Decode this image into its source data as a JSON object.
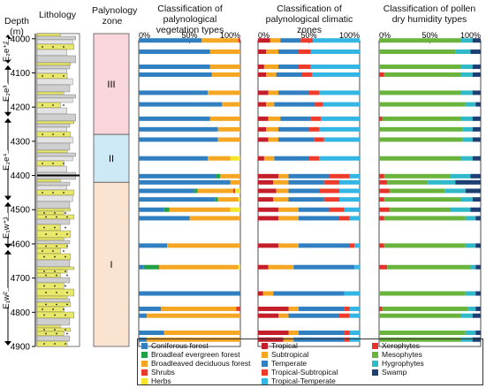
{
  "headers": {
    "depth": "Depth",
    "depth_unit": "(m)",
    "lithology": "Lithology",
    "zone": "Palynology zone",
    "panel_veg": "Classification of palynological vegetation types",
    "panel_clim": "Classification of palynological climatic zones",
    "panel_hum": "Classification of pollen dry humidity types"
  },
  "depth_ticks": [
    4000,
    4100,
    4200,
    4300,
    4400,
    4500,
    4600,
    4700,
    4800,
    4900
  ],
  "formations": [
    {
      "label": "E₂e⁺²",
      "from": 3985,
      "to": 4075
    },
    {
      "label": "E₂e³",
      "from": 4075,
      "to": 4230
    },
    {
      "label": "E₂e⁴",
      "from": 4230,
      "to": 4475
    },
    {
      "label": "E₁w⁺¹",
      "from": 4475,
      "to": 4615
    },
    {
      "label": "E₁w²",
      "from": 4615,
      "to": 4900
    }
  ],
  "zones": [
    {
      "label": "III",
      "from": 3985,
      "to": 4280,
      "color": "#f9d6dc"
    },
    {
      "label": "II",
      "from": 4280,
      "to": 4420,
      "color": "#cce9f5"
    },
    {
      "label": "I",
      "from": 4420,
      "to": 4900,
      "color": "#fbe3d2"
    }
  ],
  "axis_ticks": [
    "0%",
    "50%",
    "100%"
  ],
  "colors": {
    "Coniferous forest": "#2f7fc1",
    "Broadleaf evergreen forest": "#21a04a",
    "Broadleaved deciduous forest": "#f5a623",
    "Shrubs": "#e8392b",
    "Herbs": "#f2e52a",
    "Tropical": "#c41e2a",
    "Subtropical": "#f5a623",
    "Temperate": "#2f7fc1",
    "Tropical-Subtropical": "#ef3b2c",
    "Tropical-Temperate": "#34b6e4",
    "Xerophytes": "#e8302a",
    "Mesophytes": "#6ab43e",
    "Hygrophytes": "#30b9c9",
    "Swamp": "#1d3f73"
  },
  "legend": [
    [
      "Coniferous forest",
      "Broadleaf evergreen forest",
      "Broadleaved deciduous forest",
      "Shrubs",
      "Herbs"
    ],
    [
      "Tropical",
      "Subtropical",
      "Temperate",
      "Tropical-Subtropical",
      "Tropical-Temperate"
    ],
    [
      "Xerophytes",
      "Mesophytes",
      "Hygrophytes",
      "Swamp"
    ]
  ],
  "chart_data": [
    {
      "type": "bar",
      "title": "Classification of palynological vegetation types",
      "orientation": "horizontal-stacked",
      "xlim": [
        0,
        100
      ],
      "ylabel": "Depth (m)",
      "series_names": [
        "Coniferous forest",
        "Broadleaf evergreen forest",
        "Broadleaved deciduous forest",
        "Shrubs",
        "Herbs"
      ],
      "samples": [
        {
          "depth": 4005,
          "values": [
            62,
            0,
            36,
            2,
            0
          ]
        },
        {
          "depth": 4038,
          "values": [
            70,
            0,
            30,
            0,
            0
          ]
        },
        {
          "depth": 4082,
          "values": [
            70,
            0,
            30,
            0,
            0
          ]
        },
        {
          "depth": 4105,
          "values": [
            72,
            0,
            28,
            0,
            0
          ]
        },
        {
          "depth": 4158,
          "values": [
            68,
            0,
            32,
            0,
            0
          ]
        },
        {
          "depth": 4192,
          "values": [
            82,
            0,
            18,
            0,
            0
          ]
        },
        {
          "depth": 4234,
          "values": [
            70,
            0,
            30,
            0,
            0
          ]
        },
        {
          "depth": 4265,
          "values": [
            78,
            0,
            22,
            0,
            0
          ]
        },
        {
          "depth": 4295,
          "values": [
            78,
            0,
            22,
            0,
            0
          ]
        },
        {
          "depth": 4350,
          "values": [
            68,
            0,
            22,
            0,
            10
          ]
        },
        {
          "depth": 4402,
          "values": [
            76,
            4,
            20,
            0,
            0
          ]
        },
        {
          "depth": 4420,
          "values": [
            90,
            0,
            10,
            0,
            0
          ]
        },
        {
          "depth": 4445,
          "values": [
            55,
            3,
            35,
            2,
            5
          ]
        },
        {
          "depth": 4470,
          "values": [
            75,
            3,
            20,
            0,
            2
          ]
        },
        {
          "depth": 4500,
          "values": [
            25,
            5,
            60,
            0,
            10
          ]
        },
        {
          "depth": 4525,
          "values": [
            50,
            0,
            50,
            0,
            0
          ]
        },
        {
          "depth": 4605,
          "values": [
            28,
            0,
            72,
            0,
            0
          ]
        },
        {
          "depth": 4668,
          "values": [
            5,
            15,
            78,
            0,
            2
          ]
        },
        {
          "depth": 4745,
          "values": [
            100,
            0,
            0,
            0,
            0
          ]
        },
        {
          "depth": 4790,
          "values": [
            22,
            0,
            74,
            4,
            0
          ]
        },
        {
          "depth": 4810,
          "values": [
            8,
            0,
            92,
            0,
            0
          ]
        },
        {
          "depth": 4860,
          "values": [
            25,
            0,
            75,
            0,
            0
          ]
        },
        {
          "depth": 4880,
          "values": [
            8,
            0,
            92,
            0,
            0
          ]
        }
      ]
    },
    {
      "type": "bar",
      "title": "Classification of palynological climatic zones",
      "orientation": "horizontal-stacked",
      "xlim": [
        0,
        100
      ],
      "ylabel": "Depth (m)",
      "series_names": [
        "Tropical",
        "Subtropical",
        "Temperate",
        "Tropical-Subtropical",
        "Tropical-Temperate"
      ],
      "samples": [
        {
          "depth": 4005,
          "values": [
            12,
            10,
            20,
            12,
            46
          ]
        },
        {
          "depth": 4038,
          "values": [
            8,
            12,
            20,
            12,
            48
          ]
        },
        {
          "depth": 4082,
          "values": [
            6,
            14,
            20,
            12,
            48
          ]
        },
        {
          "depth": 4105,
          "values": [
            8,
            10,
            25,
            10,
            47
          ]
        },
        {
          "depth": 4158,
          "values": [
            10,
            10,
            30,
            10,
            40
          ]
        },
        {
          "depth": 4192,
          "values": [
            8,
            8,
            40,
            8,
            36
          ]
        },
        {
          "depth": 4234,
          "values": [
            10,
            12,
            30,
            10,
            38
          ]
        },
        {
          "depth": 4265,
          "values": [
            8,
            12,
            30,
            10,
            40
          ]
        },
        {
          "depth": 4295,
          "values": [
            10,
            10,
            35,
            10,
            35
          ]
        },
        {
          "depth": 4350,
          "values": [
            6,
            10,
            34,
            10,
            40
          ]
        },
        {
          "depth": 4402,
          "values": [
            20,
            10,
            40,
            20,
            10
          ]
        },
        {
          "depth": 4420,
          "values": [
            15,
            15,
            35,
            15,
            20
          ]
        },
        {
          "depth": 4445,
          "values": [
            18,
            12,
            30,
            20,
            20
          ]
        },
        {
          "depth": 4470,
          "values": [
            15,
            15,
            35,
            15,
            20
          ]
        },
        {
          "depth": 4500,
          "values": [
            20,
            20,
            30,
            15,
            15
          ]
        },
        {
          "depth": 4525,
          "values": [
            20,
            20,
            40,
            10,
            10
          ]
        },
        {
          "depth": 4605,
          "values": [
            20,
            20,
            50,
            5,
            5
          ]
        },
        {
          "depth": 4668,
          "values": [
            10,
            25,
            60,
            0,
            5
          ]
        },
        {
          "depth": 4745,
          "values": [
            5,
            10,
            70,
            0,
            15
          ]
        },
        {
          "depth": 4790,
          "values": [
            30,
            10,
            45,
            5,
            10
          ]
        },
        {
          "depth": 4810,
          "values": [
            20,
            10,
            50,
            10,
            10
          ]
        },
        {
          "depth": 4860,
          "values": [
            30,
            10,
            45,
            5,
            10
          ]
        },
        {
          "depth": 4880,
          "values": [
            25,
            10,
            50,
            5,
            10
          ]
        }
      ]
    },
    {
      "type": "bar",
      "title": "Classification of pollen dry humidity types",
      "orientation": "horizontal-stacked",
      "xlim": [
        0,
        100
      ],
      "ylabel": "Depth (m)",
      "series_names": [
        "Xerophytes",
        "Mesophytes",
        "Hygrophytes",
        "Swamp"
      ],
      "samples": [
        {
          "depth": 4005,
          "values": [
            0,
            80,
            12,
            8
          ]
        },
        {
          "depth": 4038,
          "values": [
            0,
            75,
            15,
            10
          ]
        },
        {
          "depth": 4082,
          "values": [
            0,
            80,
            12,
            8
          ]
        },
        {
          "depth": 4105,
          "values": [
            5,
            75,
            12,
            8
          ]
        },
        {
          "depth": 4158,
          "values": [
            0,
            80,
            12,
            8
          ]
        },
        {
          "depth": 4192,
          "values": [
            0,
            85,
            10,
            5
          ]
        },
        {
          "depth": 4234,
          "values": [
            3,
            77,
            12,
            8
          ]
        },
        {
          "depth": 4265,
          "values": [
            0,
            82,
            10,
            8
          ]
        },
        {
          "depth": 4295,
          "values": [
            0,
            82,
            10,
            8
          ]
        },
        {
          "depth": 4350,
          "values": [
            0,
            80,
            12,
            8
          ]
        },
        {
          "depth": 4402,
          "values": [
            5,
            65,
            20,
            10
          ]
        },
        {
          "depth": 4420,
          "values": [
            8,
            40,
            27,
            25
          ]
        },
        {
          "depth": 4445,
          "values": [
            10,
            55,
            20,
            15
          ]
        },
        {
          "depth": 4470,
          "values": [
            5,
            75,
            12,
            8
          ]
        },
        {
          "depth": 4500,
          "values": [
            10,
            60,
            20,
            10
          ]
        },
        {
          "depth": 4525,
          "values": [
            5,
            80,
            10,
            5
          ]
        },
        {
          "depth": 4605,
          "values": [
            5,
            80,
            10,
            5
          ]
        },
        {
          "depth": 4668,
          "values": [
            8,
            82,
            5,
            5
          ]
        },
        {
          "depth": 4745,
          "values": [
            0,
            85,
            10,
            5
          ]
        },
        {
          "depth": 4790,
          "values": [
            3,
            85,
            7,
            5
          ]
        },
        {
          "depth": 4810,
          "values": [
            0,
            80,
            12,
            8
          ]
        },
        {
          "depth": 4860,
          "values": [
            0,
            85,
            10,
            5
          ]
        },
        {
          "depth": 4880,
          "values": [
            0,
            80,
            12,
            8
          ]
        }
      ]
    }
  ]
}
